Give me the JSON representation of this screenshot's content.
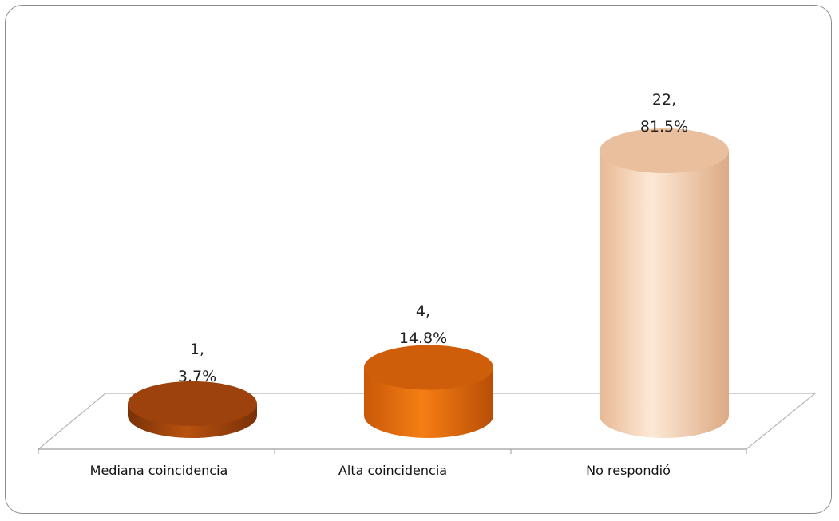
{
  "chart_data": {
    "type": "bar",
    "style": "3d-cylinder",
    "categories": [
      "Mediana coincidencia",
      "Alta coincidencia",
      "No respondió"
    ],
    "values": [
      1,
      4,
      22
    ],
    "percents": [
      "3.7%",
      "14.8%",
      "81.5%"
    ],
    "data_labels": [
      {
        "count": "1,",
        "percent": "3.7%"
      },
      {
        "count": "4,",
        "percent": "14.8%"
      },
      {
        "count": "22,",
        "percent": "81.5%"
      }
    ],
    "colors": [
      "#a8480e",
      "#e06a10",
      "#f2cba9"
    ],
    "title": "",
    "xlabel": "",
    "ylabel": "",
    "ylim": [
      0,
      22
    ],
    "grid": false,
    "legend": "none"
  }
}
